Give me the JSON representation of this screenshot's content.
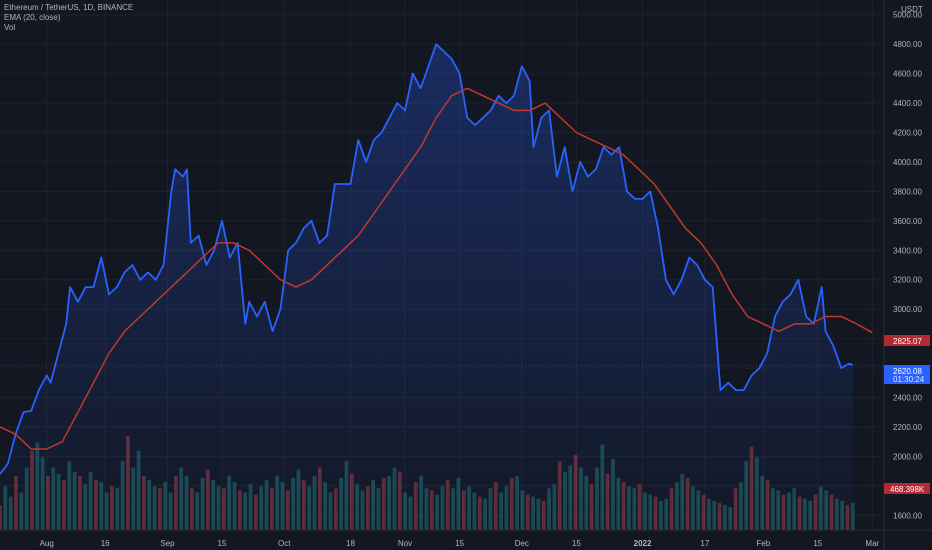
{
  "header": {
    "symbol": "Ethereum / TetherUS, 1D, BINANCE",
    "indicator_ema": "EMA (20, close)",
    "indicator_vol": "Vol"
  },
  "colors": {
    "background": "#131722",
    "price_line": "#2962ff",
    "ema_line": "#c0392b",
    "volume_up": "#26a69a",
    "volume_down": "#ef5350",
    "grid": "#1e222d"
  },
  "chart_data": {
    "type": "line",
    "y_unit": "USDT",
    "ylim": [
      1500,
      5100
    ],
    "y_ticks": [
      1600,
      1800,
      2000,
      2200,
      2400,
      2600,
      2800,
      3000,
      3200,
      3400,
      3600,
      3800,
      4000,
      4200,
      4400,
      4600,
      4800,
      5000
    ],
    "y_tick_labels": [
      "1600.00",
      "1800.00",
      "2000.00",
      "2200.00",
      "2400.00",
      "2600.00",
      "2800.00",
      "3000.00",
      "3200.00",
      "3400.00",
      "3600.00",
      "3800.00",
      "4000.00",
      "4200.00",
      "4400.00",
      "4600.00",
      "4800.00",
      "5000.00"
    ],
    "x_range": [
      "2021-07-20",
      "2022-03-04"
    ],
    "x_ticks": [
      {
        "date": "2021-08-01",
        "label": "Aug"
      },
      {
        "date": "2021-08-16",
        "label": "16"
      },
      {
        "date": "2021-09-01",
        "label": "Sep"
      },
      {
        "date": "2021-09-15",
        "label": "15"
      },
      {
        "date": "2021-10-01",
        "label": "Oct"
      },
      {
        "date": "2021-10-18",
        "label": "18"
      },
      {
        "date": "2021-11-01",
        "label": "Nov"
      },
      {
        "date": "2021-11-15",
        "label": "15"
      },
      {
        "date": "2021-12-01",
        "label": "Dec"
      },
      {
        "date": "2021-12-15",
        "label": "15"
      },
      {
        "date": "2022-01-01",
        "label": "2022"
      },
      {
        "date": "2022-01-17",
        "label": "17"
      },
      {
        "date": "2022-02-01",
        "label": "Feb"
      },
      {
        "date": "2022-02-15",
        "label": "15"
      },
      {
        "date": "2022-03-01",
        "label": "Mar"
      }
    ],
    "series": [
      {
        "points": [
          [
            "2021-07-20",
            1880
          ],
          [
            "2021-07-22",
            1950
          ],
          [
            "2021-07-24",
            2150
          ],
          [
            "2021-07-26",
            2300
          ],
          [
            "2021-07-28",
            2310
          ],
          [
            "2021-07-30",
            2450
          ],
          [
            "2021-08-01",
            2550
          ],
          [
            "2021-08-02",
            2500
          ],
          [
            "2021-08-04",
            2700
          ],
          [
            "2021-08-06",
            2900
          ],
          [
            "2021-08-07",
            3150
          ],
          [
            "2021-08-09",
            3050
          ],
          [
            "2021-08-11",
            3150
          ],
          [
            "2021-08-13",
            3150
          ],
          [
            "2021-08-15",
            3350
          ],
          [
            "2021-08-17",
            3100
          ],
          [
            "2021-08-19",
            3150
          ],
          [
            "2021-08-21",
            3250
          ],
          [
            "2021-08-23",
            3300
          ],
          [
            "2021-08-25",
            3200
          ],
          [
            "2021-08-27",
            3250
          ],
          [
            "2021-08-29",
            3200
          ],
          [
            "2021-08-31",
            3300
          ],
          [
            "2021-09-02",
            3800
          ],
          [
            "2021-09-03",
            3950
          ],
          [
            "2021-09-05",
            3900
          ],
          [
            "2021-09-06",
            3950
          ],
          [
            "2021-09-07",
            3450
          ],
          [
            "2021-09-09",
            3500
          ],
          [
            "2021-09-11",
            3300
          ],
          [
            "2021-09-13",
            3400
          ],
          [
            "2021-09-15",
            3600
          ],
          [
            "2021-09-17",
            3350
          ],
          [
            "2021-09-19",
            3450
          ],
          [
            "2021-09-21",
            2900
          ],
          [
            "2021-09-22",
            3050
          ],
          [
            "2021-09-24",
            2950
          ],
          [
            "2021-09-26",
            3050
          ],
          [
            "2021-09-28",
            2850
          ],
          [
            "2021-09-30",
            3000
          ],
          [
            "2021-10-02",
            3400
          ],
          [
            "2021-10-04",
            3450
          ],
          [
            "2021-10-06",
            3550
          ],
          [
            "2021-10-08",
            3600
          ],
          [
            "2021-10-10",
            3450
          ],
          [
            "2021-10-12",
            3500
          ],
          [
            "2021-10-14",
            3850
          ],
          [
            "2021-10-16",
            3850
          ],
          [
            "2021-10-18",
            3850
          ],
          [
            "2021-10-20",
            4150
          ],
          [
            "2021-10-22",
            4000
          ],
          [
            "2021-10-24",
            4150
          ],
          [
            "2021-10-26",
            4200
          ],
          [
            "2021-10-28",
            4300
          ],
          [
            "2021-10-30",
            4400
          ],
          [
            "2021-11-01",
            4350
          ],
          [
            "2021-11-03",
            4600
          ],
          [
            "2021-11-05",
            4500
          ],
          [
            "2021-11-07",
            4650
          ],
          [
            "2021-11-09",
            4800
          ],
          [
            "2021-11-11",
            4750
          ],
          [
            "2021-11-13",
            4700
          ],
          [
            "2021-11-15",
            4600
          ],
          [
            "2021-11-17",
            4300
          ],
          [
            "2021-11-19",
            4250
          ],
          [
            "2021-11-21",
            4300
          ],
          [
            "2021-11-23",
            4350
          ],
          [
            "2021-11-25",
            4450
          ],
          [
            "2021-11-27",
            4400
          ],
          [
            "2021-11-29",
            4450
          ],
          [
            "2021-12-01",
            4650
          ],
          [
            "2021-12-03",
            4550
          ],
          [
            "2021-12-04",
            4100
          ],
          [
            "2021-12-06",
            4300
          ],
          [
            "2021-12-08",
            4350
          ],
          [
            "2021-12-10",
            3900
          ],
          [
            "2021-12-12",
            4100
          ],
          [
            "2021-12-14",
            3800
          ],
          [
            "2021-12-16",
            4000
          ],
          [
            "2021-12-18",
            3900
          ],
          [
            "2021-12-20",
            3950
          ],
          [
            "2021-12-22",
            4100
          ],
          [
            "2021-12-24",
            4050
          ],
          [
            "2021-12-26",
            4100
          ],
          [
            "2021-12-28",
            3800
          ],
          [
            "2021-12-30",
            3750
          ],
          [
            "2022-01-01",
            3750
          ],
          [
            "2022-01-03",
            3800
          ],
          [
            "2022-01-05",
            3550
          ],
          [
            "2022-01-07",
            3200
          ],
          [
            "2022-01-09",
            3100
          ],
          [
            "2022-01-11",
            3200
          ],
          [
            "2022-01-13",
            3350
          ],
          [
            "2022-01-15",
            3300
          ],
          [
            "2022-01-17",
            3200
          ],
          [
            "2022-01-19",
            3150
          ],
          [
            "2022-01-21",
            2450
          ],
          [
            "2022-01-23",
            2500
          ],
          [
            "2022-01-25",
            2450
          ],
          [
            "2022-01-27",
            2450
          ],
          [
            "2022-01-29",
            2550
          ],
          [
            "2022-01-31",
            2600
          ],
          [
            "2022-02-02",
            2700
          ],
          [
            "2022-02-04",
            2950
          ],
          [
            "2022-02-06",
            3050
          ],
          [
            "2022-02-08",
            3100
          ],
          [
            "2022-02-10",
            3200
          ],
          [
            "2022-02-12",
            2950
          ],
          [
            "2022-02-14",
            2900
          ],
          [
            "2022-02-16",
            3150
          ],
          [
            "2022-02-17",
            2850
          ],
          [
            "2022-02-19",
            2750
          ],
          [
            "2022-02-21",
            2600
          ],
          [
            "2022-02-23",
            2630
          ],
          [
            "2022-02-24",
            2620
          ]
        ]
      },
      {
        "name": "EMA (20, close)",
        "points": [
          [
            "2021-07-20",
            2200
          ],
          [
            "2021-07-24",
            2150
          ],
          [
            "2021-07-28",
            2050
          ],
          [
            "2021-08-01",
            2050
          ],
          [
            "2021-08-05",
            2100
          ],
          [
            "2021-08-09",
            2300
          ],
          [
            "2021-08-13",
            2500
          ],
          [
            "2021-08-17",
            2700
          ],
          [
            "2021-08-21",
            2850
          ],
          [
            "2021-08-25",
            2950
          ],
          [
            "2021-08-29",
            3050
          ],
          [
            "2021-09-02",
            3150
          ],
          [
            "2021-09-06",
            3250
          ],
          [
            "2021-09-10",
            3350
          ],
          [
            "2021-09-14",
            3450
          ],
          [
            "2021-09-18",
            3450
          ],
          [
            "2021-09-22",
            3400
          ],
          [
            "2021-09-26",
            3300
          ],
          [
            "2021-09-30",
            3200
          ],
          [
            "2021-10-04",
            3150
          ],
          [
            "2021-10-08",
            3200
          ],
          [
            "2021-10-12",
            3300
          ],
          [
            "2021-10-16",
            3400
          ],
          [
            "2021-10-20",
            3500
          ],
          [
            "2021-10-24",
            3650
          ],
          [
            "2021-10-28",
            3800
          ],
          [
            "2021-11-01",
            3950
          ],
          [
            "2021-11-05",
            4100
          ],
          [
            "2021-11-09",
            4300
          ],
          [
            "2021-11-13",
            4450
          ],
          [
            "2021-11-17",
            4500
          ],
          [
            "2021-11-21",
            4450
          ],
          [
            "2021-11-25",
            4400
          ],
          [
            "2021-11-29",
            4350
          ],
          [
            "2021-12-03",
            4350
          ],
          [
            "2021-12-07",
            4400
          ],
          [
            "2021-12-11",
            4300
          ],
          [
            "2021-12-15",
            4200
          ],
          [
            "2021-12-19",
            4150
          ],
          [
            "2021-12-23",
            4100
          ],
          [
            "2021-12-27",
            4050
          ],
          [
            "2021-12-31",
            3950
          ],
          [
            "2022-01-04",
            3850
          ],
          [
            "2022-01-08",
            3700
          ],
          [
            "2022-01-12",
            3550
          ],
          [
            "2022-01-16",
            3450
          ],
          [
            "2022-01-20",
            3300
          ],
          [
            "2022-01-24",
            3100
          ],
          [
            "2022-01-28",
            2950
          ],
          [
            "2022-02-01",
            2900
          ],
          [
            "2022-02-05",
            2850
          ],
          [
            "2022-02-09",
            2900
          ],
          [
            "2022-02-13",
            2900
          ],
          [
            "2022-02-17",
            2950
          ],
          [
            "2022-02-21",
            2950
          ],
          [
            "2022-02-25",
            2900
          ],
          [
            "2022-03-01",
            2840
          ]
        ]
      }
    ],
    "volume_scale_max": 720,
    "volume": [
      120,
      210,
      160,
      260,
      180,
      300,
      380,
      420,
      350,
      260,
      300,
      270,
      240,
      330,
      280,
      260,
      220,
      280,
      240,
      230,
      180,
      210,
      200,
      330,
      450,
      300,
      380,
      260,
      240,
      210,
      200,
      230,
      180,
      260,
      300,
      260,
      200,
      180,
      250,
      290,
      240,
      210,
      200,
      260,
      230,
      190,
      180,
      220,
      170,
      210,
      240,
      200,
      260,
      230,
      190,
      250,
      290,
      240,
      210,
      260,
      300,
      230,
      180,
      200,
      250,
      330,
      270,
      220,
      190,
      210,
      240,
      200,
      250,
      260,
      300,
      280,
      180,
      160,
      230,
      260,
      200,
      190,
      170,
      210,
      240,
      200,
      250,
      190,
      210,
      180,
      160,
      150,
      200,
      230,
      180,
      210,
      250,
      260,
      190,
      170,
      160,
      150,
      140,
      200,
      220,
      330,
      280,
      310,
      360,
      300,
      260,
      220,
      300,
      410,
      270,
      340,
      250,
      230,
      210,
      200,
      220,
      180,
      170,
      160,
      140,
      150,
      200,
      230,
      270,
      250,
      210,
      190,
      170,
      150,
      140,
      130,
      120,
      110,
      200,
      230,
      330,
      400,
      350,
      260,
      240,
      200,
      190,
      170,
      180,
      200,
      160,
      150,
      140,
      170,
      210,
      190,
      170,
      150,
      140,
      120,
      130
    ],
    "price_labels": [
      {
        "id": "ema",
        "value": "2825.07"
      },
      {
        "id": "last_price",
        "value": "2620.08"
      },
      {
        "id": "countdown",
        "value": "01:30:24"
      },
      {
        "id": "volume",
        "value": "468.398K"
      }
    ]
  },
  "scale_label": "USDT",
  "last_price": "2620.08",
  "countdown": "01:30:24",
  "ema_value": "2825.07",
  "volume_value": "468.398K"
}
